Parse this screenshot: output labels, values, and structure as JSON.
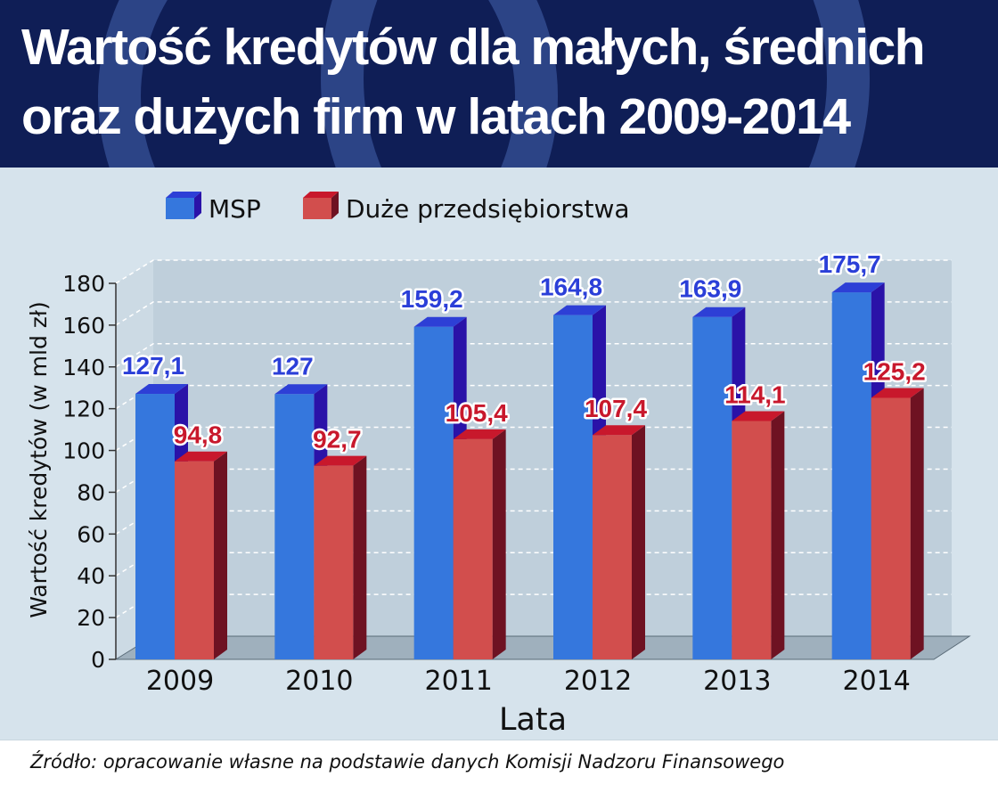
{
  "title_lines": [
    "Wartość kredytów dla małych, średnich",
    "oraz dużych firm w latach 2009-2014"
  ],
  "source": "Źródło: opracowanie własne na podstawie danych Komisji Nadzoru Finansowego",
  "colors": {
    "header_bg": "#0f1e56",
    "msp_front": "#3577dd",
    "msp_side": "#2a12a8",
    "msp_top": "#2d3fd6",
    "msp_label": "#2b3fd8",
    "duze_front": "#d24e4d",
    "duze_side": "#6e1222",
    "duze_top": "#c8182c",
    "duze_label": "#c8182c"
  },
  "chart_data": {
    "type": "bar",
    "title": "Wartość kredytów dla małych, średnich oraz dużych firm w latach 2009-2014",
    "xlabel": "Lata",
    "ylabel": "Wartość kredytów (w mld zł)",
    "categories": [
      "2009",
      "2010",
      "2011",
      "2012",
      "2013",
      "2014"
    ],
    "ylim": [
      0,
      180
    ],
    "yticks": [
      0,
      20,
      40,
      60,
      80,
      100,
      120,
      140,
      160,
      180
    ],
    "grid": true,
    "legend_position": "top-left",
    "series": [
      {
        "name": "MSP",
        "values": [
          127.1,
          127,
          159.2,
          164.8,
          163.9,
          175.7
        ],
        "labels": [
          "127,1",
          "127",
          "159,2",
          "164,8",
          "163,9",
          "175,7"
        ]
      },
      {
        "name": "Duże przedsiębiorstwa",
        "values": [
          94.8,
          92.7,
          105.4,
          107.4,
          114.1,
          125.2
        ],
        "labels": [
          "94,8",
          "92,7",
          "105,4",
          "107,4",
          "114,1",
          "125,2"
        ]
      }
    ]
  }
}
